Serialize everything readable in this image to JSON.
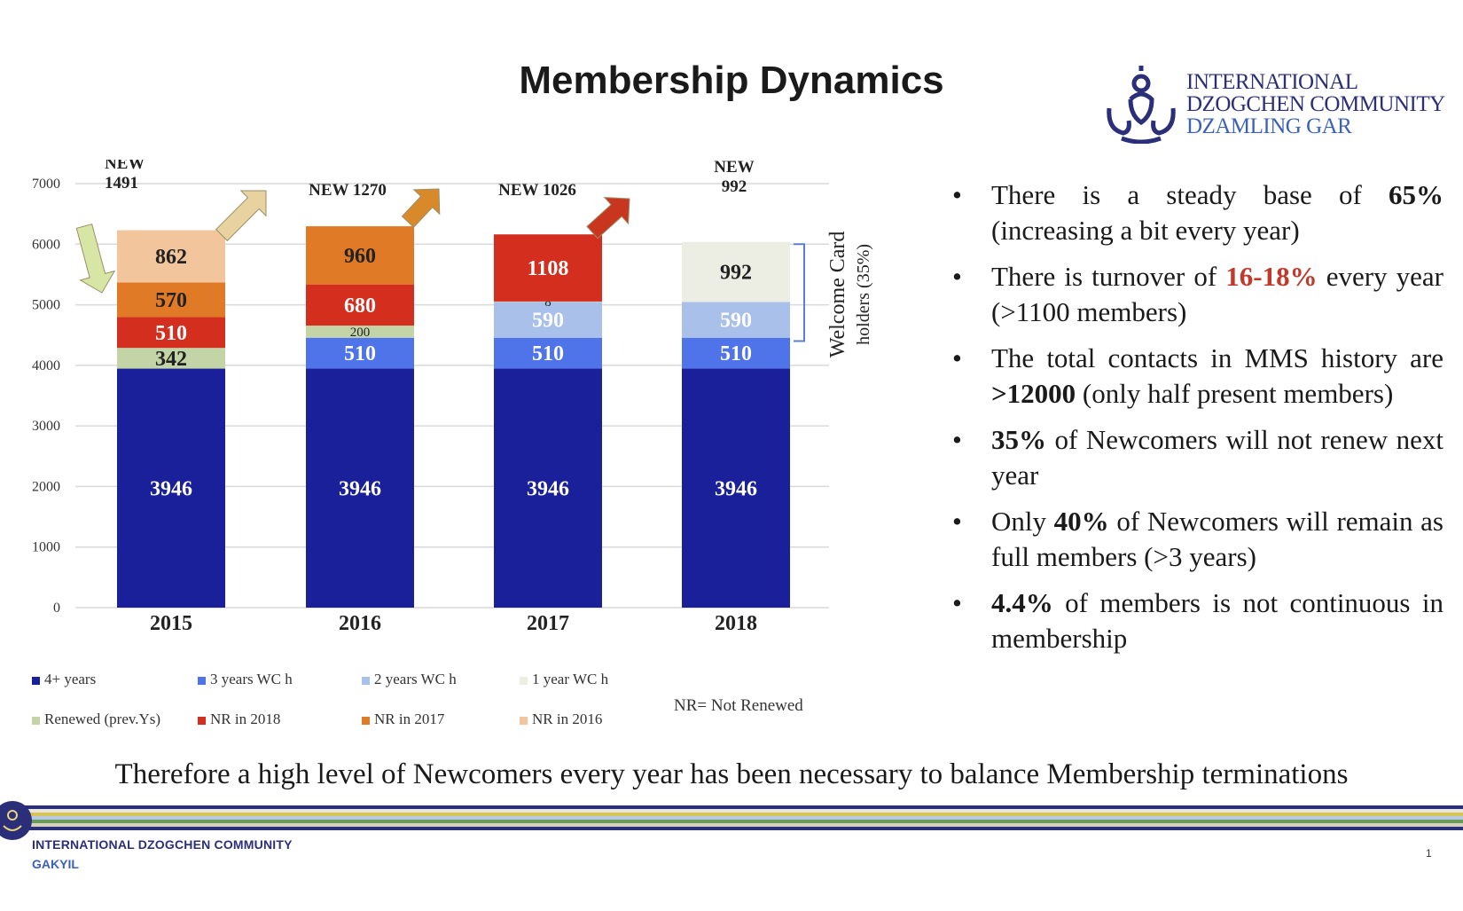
{
  "title": "Membership Dynamics",
  "org_logo": {
    "line1": "INTERNATIONAL",
    "line2": "DZOGCHEN COMMUNITY",
    "line3": "DZAMLING GAR"
  },
  "chart_data": {
    "type": "bar",
    "stacked": true,
    "categories": [
      "2015",
      "2016",
      "2017",
      "2018"
    ],
    "ylim": [
      0,
      7000
    ],
    "yticks": [
      0,
      1000,
      2000,
      3000,
      4000,
      5000,
      6000,
      7000
    ],
    "grid": true,
    "series": [
      {
        "name": "4+ years",
        "color": "#1a1f9a",
        "text_color": "#ffffff",
        "values": [
          3946,
          3946,
          3946,
          3946
        ],
        "labels": [
          "3946",
          "3946",
          "3946",
          "3946"
        ]
      },
      {
        "name": "3 years WC h",
        "color": "#4f73e8",
        "text_color": "#ffffff",
        "values": [
          0,
          510,
          510,
          510
        ],
        "labels": [
          "",
          "510",
          "510",
          "510"
        ]
      },
      {
        "name": "2 years WC h",
        "color": "#a9c0ea",
        "text_color": "#ffffff",
        "values": [
          0,
          0,
          590,
          590
        ],
        "labels": [
          "",
          "",
          "590",
          "590"
        ]
      },
      {
        "name": "1 year WC h",
        "color": "#eceee4",
        "text_color": "#222222",
        "values": [
          0,
          0,
          0,
          992
        ],
        "labels": [
          "",
          "",
          "",
          "992"
        ]
      },
      {
        "name": "Renewed (prev.Ys)",
        "color": "#c3d4a7",
        "text_color": "#222222",
        "values": [
          342,
          200,
          8,
          0
        ],
        "labels": [
          "342",
          "200",
          "8",
          ""
        ]
      },
      {
        "name": "NR in 2018",
        "color": "#d42e1e",
        "text_color": "#ffffff",
        "values": [
          510,
          680,
          1108,
          0
        ],
        "labels": [
          "510",
          "680",
          "1108",
          ""
        ]
      },
      {
        "name": "NR in 2017",
        "color": "#e07a26",
        "text_color": "#222222",
        "values": [
          570,
          960,
          0,
          0
        ],
        "labels": [
          "570",
          "960",
          "",
          ""
        ]
      },
      {
        "name": "NR in 2016",
        "color": "#f2c59d",
        "text_color": "#222222",
        "values": [
          862,
          0,
          0,
          0
        ],
        "labels": [
          "862",
          "",
          "",
          ""
        ]
      }
    ],
    "annotations": {
      "new_labels": [
        "NEW 1491",
        "NEW 1270",
        "NEW 1026",
        "NEW 992"
      ],
      "new_labels_split": [
        [
          "NEW",
          "1491"
        ],
        [
          "NEW 1270"
        ],
        [
          "NEW 1026"
        ],
        [
          "NEW",
          "992"
        ]
      ],
      "bracket_label_line1": "Welcome Card",
      "bracket_label_line2": "holders (35%)"
    },
    "legend": "bottom"
  },
  "nr_note": "NR= Not Renewed",
  "bullets": [
    {
      "parts": [
        {
          "t": "There is a steady base of "
        },
        {
          "t": "65%",
          "b": true
        },
        {
          "t": " (increasing a bit every year)"
        }
      ]
    },
    {
      "parts": [
        {
          "t": "There is turnover of "
        },
        {
          "t": "16-18%",
          "b": true,
          "red": true
        },
        {
          "t": " every year (>1100 members)"
        }
      ]
    },
    {
      "parts": [
        {
          "t": "The total contacts in MMS history are "
        },
        {
          "t": ">12000",
          "b": true
        },
        {
          "t": " (only half present members)"
        }
      ]
    },
    {
      "parts": [
        {
          "t": "35%",
          "b": true
        },
        {
          "t": " of Newcomers will not renew next year"
        }
      ]
    },
    {
      "parts": [
        {
          "t": "Only "
        },
        {
          "t": "40%",
          "b": true
        },
        {
          "t": " of Newcomers will remain as full members (>3 years)"
        }
      ]
    },
    {
      "parts": [
        {
          "t": "4.4%",
          "b": true
        },
        {
          "t": " of members is not continuous in membership"
        }
      ]
    }
  ],
  "conclusion": "Therefore a high level of Newcomers every year has been necessary to balance Membership terminations",
  "footer": {
    "org": "INTERNATIONAL DZOGCHEN COMMUNITY",
    "sub": "GAKYIL",
    "page": "1"
  },
  "colors": {
    "stripe_colors": [
      "#2b2f7a",
      "#e8e6d8",
      "#d8c25a",
      "#b8c9e6",
      "#6a9a5a",
      "#d7d2c0",
      "#2b2f7a"
    ]
  }
}
